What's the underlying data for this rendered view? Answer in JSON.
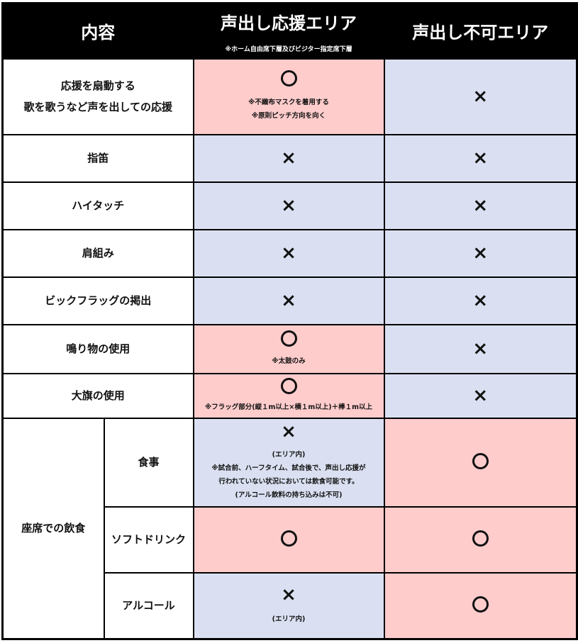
{
  "header": {
    "content": "内容",
    "cheer_area": "声出し応援エリア",
    "cheer_area_note": "※ホーム自由席下層及びビジター指定席下層",
    "no_voice_area": "声出し不可エリア"
  },
  "marks": {
    "ok": "○",
    "ng": "×"
  },
  "colors": {
    "allowed": "#ffcccc",
    "not_allowed": "#dae0f1",
    "header": "#000000"
  },
  "rows": [
    {
      "label_1": "応援を扇動する",
      "label_2": "歌を歌うなど声を出しての応援",
      "cheer": "ok",
      "cheer_notes": [
        "※不織布マスクを着用する",
        "※原則ピッチ方向を向く"
      ],
      "no_voice": "ng"
    },
    {
      "label": "指笛",
      "cheer": "ng",
      "no_voice": "ng"
    },
    {
      "label": "ハイタッチ",
      "cheer": "ng",
      "no_voice": "ng"
    },
    {
      "label": "肩組み",
      "cheer": "ng",
      "no_voice": "ng"
    },
    {
      "label": "ビックフラッグの掲出",
      "cheer": "ng",
      "no_voice": "ng"
    },
    {
      "label": "鳴り物の使用",
      "cheer": "ok",
      "cheer_note": "※太鼓のみ",
      "no_voice": "ng"
    },
    {
      "label": "大旗の使用",
      "cheer": "ok",
      "cheer_note": "※フラッグ部分(縦１m以上×横１m以上)＋棒１m以上",
      "no_voice": "ng"
    }
  ],
  "food": {
    "group_label": "座席での飲食",
    "items": [
      {
        "label": "食事",
        "cheer": "ng",
        "cheer_notes": [
          "(エリア内)",
          "※試合前、ハーフタイム、試合後で、声出し応援が",
          "行われていない状況においては飲食可能です。",
          "(アルコール飲料の持ち込みは不可)"
        ],
        "no_voice": "ok"
      },
      {
        "label": "ソフトドリンク",
        "cheer": "ok",
        "no_voice": "ok"
      },
      {
        "label": "アルコール",
        "cheer": "ng",
        "cheer_notes": [
          "(エリア内)"
        ],
        "no_voice": "ok"
      }
    ]
  }
}
